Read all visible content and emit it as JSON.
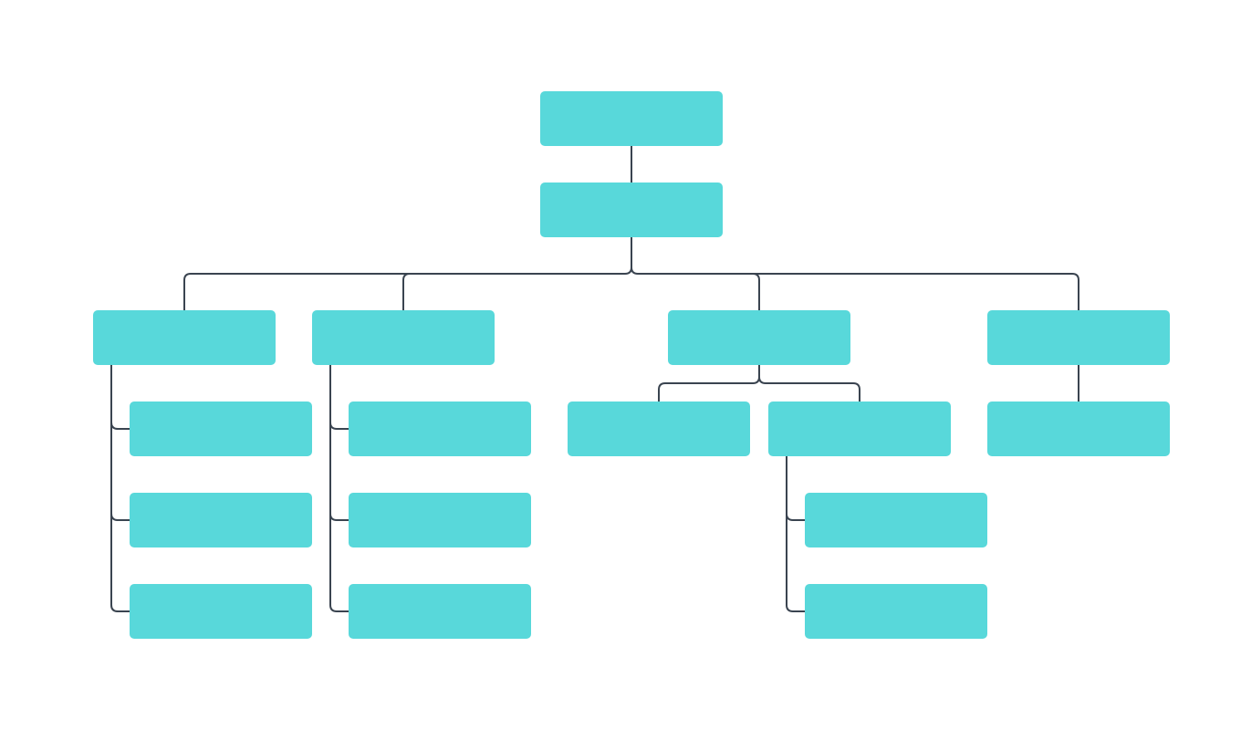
{
  "diagram": {
    "type": "org-chart",
    "colors": {
      "node_fill": "#58d8da",
      "connector": "#3a4450",
      "background": "#ffffff"
    }
  }
}
